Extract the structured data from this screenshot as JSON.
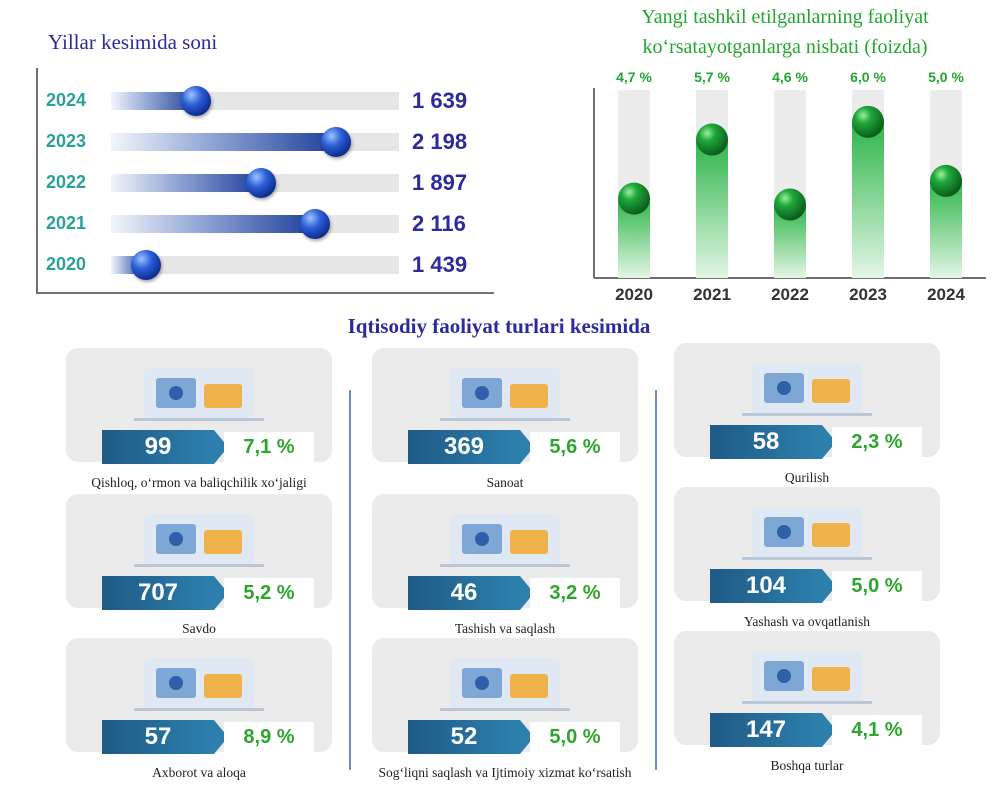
{
  "chart_data": [
    {
      "type": "bar",
      "title": "Yillar kesimida soni",
      "categories": [
        "2024",
        "2023",
        "2022",
        "2021",
        "2020"
      ],
      "values": [
        1639,
        2198,
        1897,
        2116,
        1439
      ],
      "value_labels": [
        "1 639",
        "2 198",
        "1 897",
        "2 116",
        "1 439"
      ],
      "orientation": "horizontal",
      "grid": false
    },
    {
      "type": "bar",
      "title": "Yangi tashkil etilganlarning faoliyat ko‘rsatayotganlarga nisbati (foizda)",
      "categories": [
        "2020",
        "2021",
        "2022",
        "2023",
        "2024"
      ],
      "values": [
        4.7,
        5.7,
        4.6,
        6.0,
        5.0
      ],
      "value_labels": [
        "4,7 %",
        "5,7 %",
        "4,6 %",
        "6,0 %",
        "5,0 %"
      ],
      "orientation": "vertical",
      "grid": false
    },
    {
      "type": "table",
      "title": "Iqtisodiy faoliyat turlari kesimida",
      "rows": [
        {
          "label": "Qishloq, o‘rmon va baliqchilik xo‘jaligi",
          "count": "99",
          "percent": "7,1 %",
          "icon": "agriculture-icon"
        },
        {
          "label": "Savdo",
          "count": "707",
          "percent": "5,2 %",
          "icon": "trade-icon"
        },
        {
          "label": "Axborot va aloqa",
          "count": "57",
          "percent": "8,9 %",
          "icon": "it-icon"
        },
        {
          "label": "Sanoat",
          "count": "369",
          "percent": "5,6 %",
          "icon": "industry-icon"
        },
        {
          "label": "Tashish va saqlash",
          "count": "46",
          "percent": "3,2 %",
          "icon": "transport-icon"
        },
        {
          "label": "Sog‘liqni saqlash va Ijtimoiy xizmat ko‘rsatish",
          "count": "52",
          "percent": "5,0 %",
          "icon": "health-icon"
        },
        {
          "label": "Qurilish",
          "count": "58",
          "percent": "2,3 %",
          "icon": "construction-icon"
        },
        {
          "label": "Yashash va ovqatlanish",
          "count": "104",
          "percent": "5,0 %",
          "icon": "food-service-icon"
        },
        {
          "label": "Boshqa turlar",
          "count": "147",
          "percent": "4,1 %",
          "icon": "other-icon"
        }
      ]
    }
  ],
  "colors": {
    "navy": "#2d2a9c",
    "teal": "#2aa19a",
    "green": "#22a630",
    "blue_bar": "#1f3f9a",
    "count_box": "#2d80ae"
  }
}
